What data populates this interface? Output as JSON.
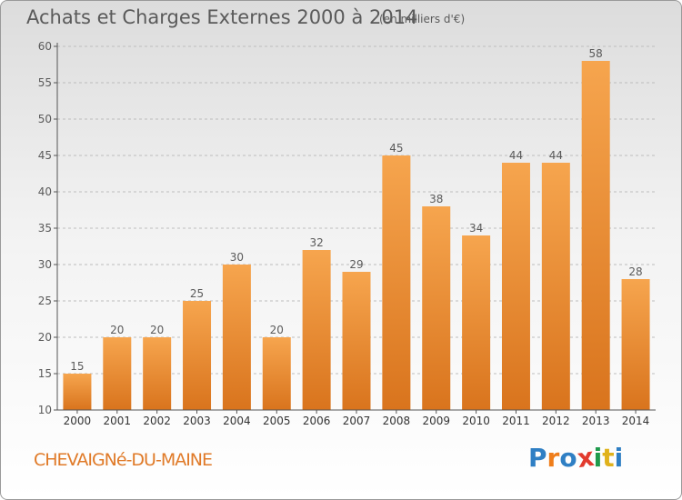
{
  "header": {
    "title": "Achats et Charges Externes 2000 à 2014",
    "unit": "(en milliers d'€)"
  },
  "footer": {
    "town": "CHEVAIGNé-DU-MAINE",
    "logo": [
      "P",
      "r",
      "o",
      "x",
      "i",
      "t",
      "i"
    ],
    "logo_colors": [
      "#2f7fc4",
      "#ef7d1a",
      "#2f7fc4",
      "#e23b2e",
      "#1f9a4c",
      "#e0b21c",
      "#2f7fc4"
    ]
  },
  "colors": {
    "bar_light": "#f6a54e",
    "bar_dark": "#d9741d",
    "text": "#5a5a5a",
    "grid": "#bdbdbd"
  },
  "chart_data": {
    "type": "bar",
    "title": "Achats et Charges Externes 2000 à 2014",
    "categories": [
      "2000",
      "2001",
      "2002",
      "2003",
      "2004",
      "2005",
      "2006",
      "2007",
      "2008",
      "2009",
      "2010",
      "2011",
      "2012",
      "2013",
      "2014"
    ],
    "values": [
      15,
      20,
      20,
      25,
      30,
      20,
      32,
      29,
      45,
      38,
      34,
      44,
      44,
      58,
      28
    ],
    "ylim": [
      10,
      60
    ],
    "yticks": [
      10,
      15,
      20,
      25,
      30,
      35,
      40,
      45,
      50,
      55,
      60
    ],
    "grid": true,
    "xlabel": "",
    "ylabel": ""
  }
}
